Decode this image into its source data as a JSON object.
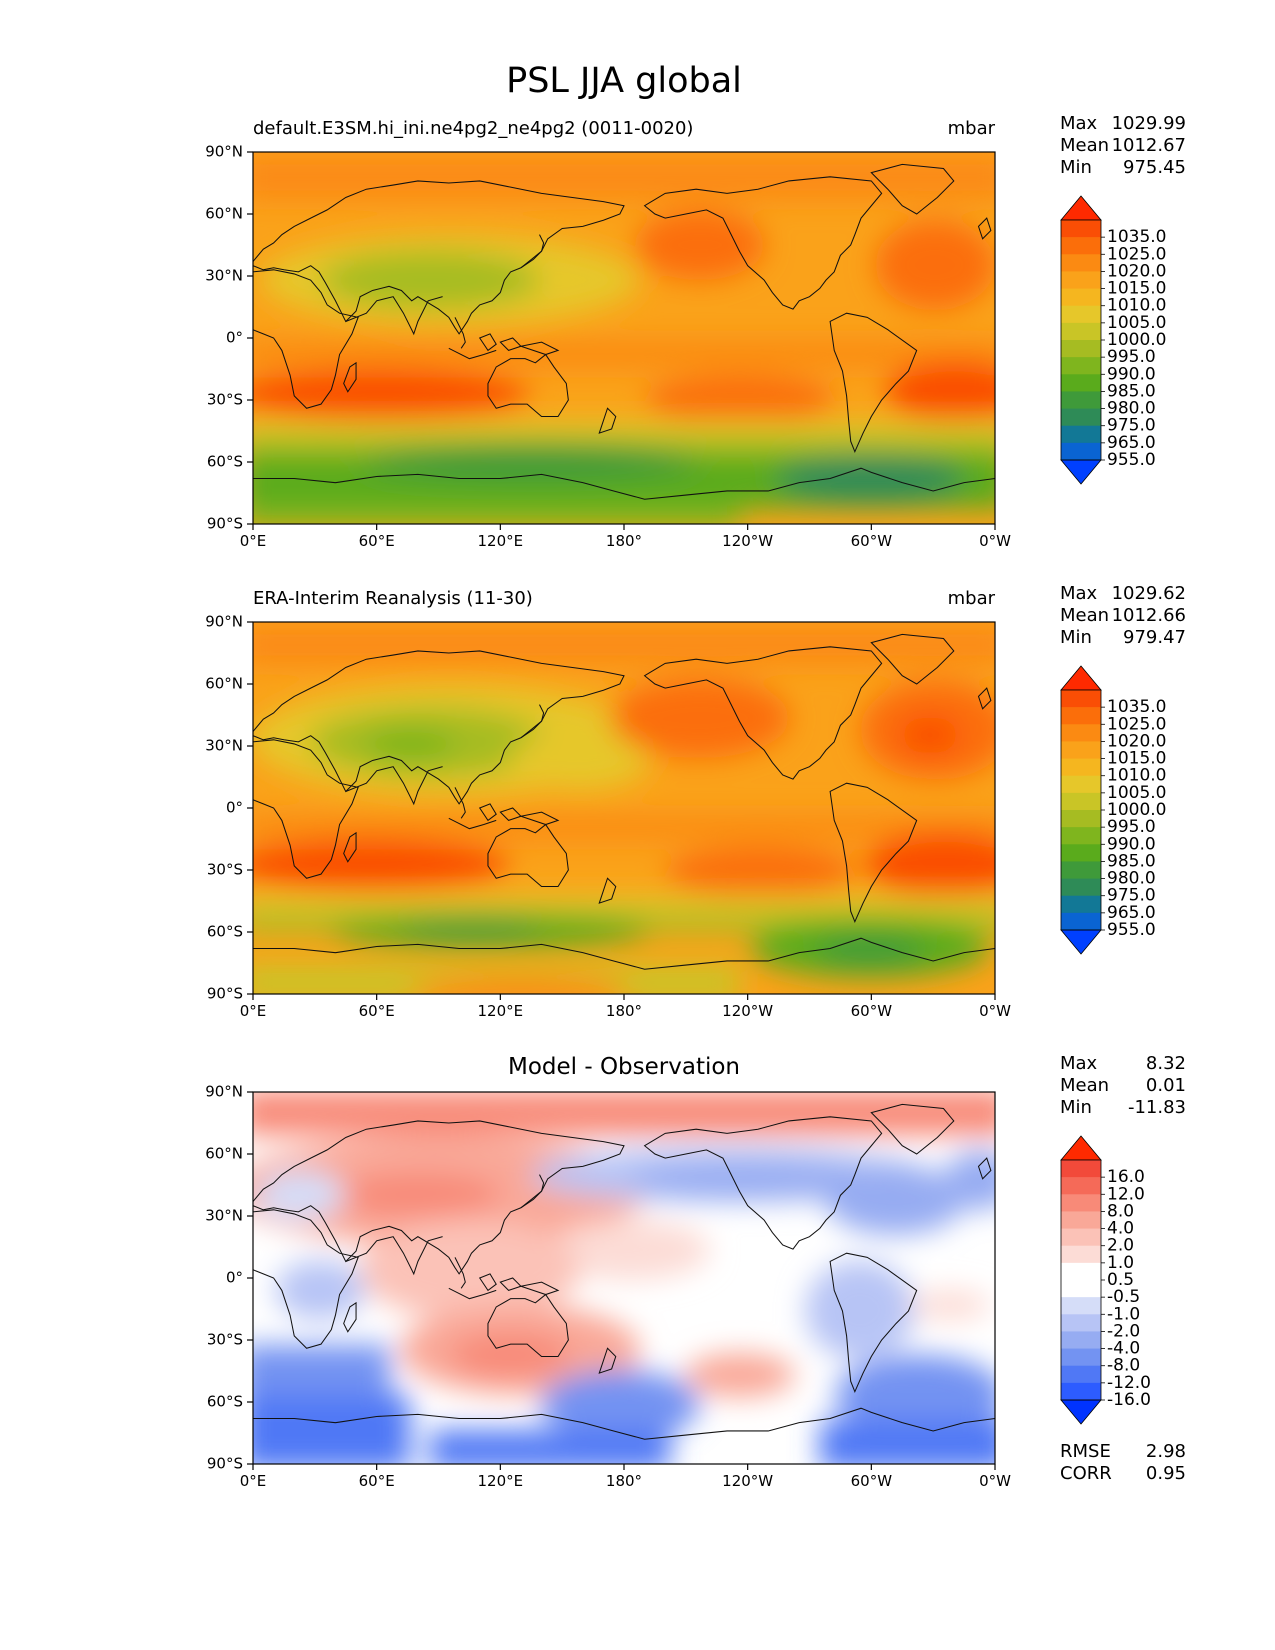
{
  "figure_title": "PSL JJA global",
  "tick_labels": {
    "lat": [
      "90°N",
      "60°N",
      "30°N",
      "0°",
      "30°S",
      "60°S",
      "90°S"
    ],
    "lon": [
      "0°E",
      "60°E",
      "120°E",
      "180°",
      "120°W",
      "60°W",
      "0°W"
    ]
  },
  "colors": {
    "psl_levels": [
      "#0040ff",
      "#0a64d2",
      "#127896",
      "#2e8b57",
      "#3f9a3a",
      "#5aab1c",
      "#7fb51e",
      "#a6bc22",
      "#c9c526",
      "#e6c72a",
      "#f5b61f",
      "#faa21a",
      "#fb8a12",
      "#fb6e0a",
      "#fa4e05",
      "#ff2a00"
    ],
    "diff_levels": [
      "#0033ff",
      "#2d5cff",
      "#5078f5",
      "#7393f2",
      "#96acf2",
      "#b7c4f5",
      "#d5ddf8",
      "#ffffff",
      "#ffffff",
      "#fcdcd6",
      "#fbc2b7",
      "#f9a898",
      "#f88a78",
      "#f56a58",
      "#f24a3a",
      "#ff2a00"
    ]
  },
  "panels": [
    {
      "id": "model",
      "title_left": "default.E3SM.hi_ini.ne4pg2_ne4pg2 (0011-0020)",
      "title_center": "",
      "units": "mbar",
      "stats": [
        {
          "label": "Max",
          "value": "1029.99"
        },
        {
          "label": "Mean",
          "value": "1012.67"
        },
        {
          "label": "Min",
          "value": "975.45"
        }
      ],
      "colorbar_labels": [
        "1035.0",
        "1025.0",
        "1020.0",
        "1015.0",
        "1010.0",
        "1005.0",
        "1000.0",
        "995.0",
        "990.0",
        "985.0",
        "980.0",
        "975.0",
        "965.0",
        "955.0"
      ],
      "metrics": []
    },
    {
      "id": "obs",
      "title_left": "ERA-Interim Reanalysis (11-30)",
      "title_center": "",
      "units": "mbar",
      "stats": [
        {
          "label": "Max",
          "value": "1029.62"
        },
        {
          "label": "Mean",
          "value": "1012.66"
        },
        {
          "label": "Min",
          "value": "979.47"
        }
      ],
      "colorbar_labels": [
        "1035.0",
        "1025.0",
        "1020.0",
        "1015.0",
        "1010.0",
        "1005.0",
        "1000.0",
        "995.0",
        "990.0",
        "985.0",
        "980.0",
        "975.0",
        "965.0",
        "955.0"
      ],
      "metrics": []
    },
    {
      "id": "diff",
      "title_left": "",
      "title_center": "Model - Observation",
      "units": "",
      "stats": [
        {
          "label": "Max",
          "value": "8.32"
        },
        {
          "label": "Mean",
          "value": "0.01"
        },
        {
          "label": "Min",
          "value": "-11.83"
        }
      ],
      "colorbar_labels": [
        "16.0",
        "12.0",
        "8.0",
        "4.0",
        "2.0",
        "1.0",
        "0.5",
        "-0.5",
        "-1.0",
        "-2.0",
        "-4.0",
        "-8.0",
        "-12.0",
        "-16.0"
      ],
      "metrics": [
        {
          "label": "RMSE",
          "value": "2.98"
        },
        {
          "label": "CORR",
          "value": "0.95"
        }
      ]
    }
  ]
}
